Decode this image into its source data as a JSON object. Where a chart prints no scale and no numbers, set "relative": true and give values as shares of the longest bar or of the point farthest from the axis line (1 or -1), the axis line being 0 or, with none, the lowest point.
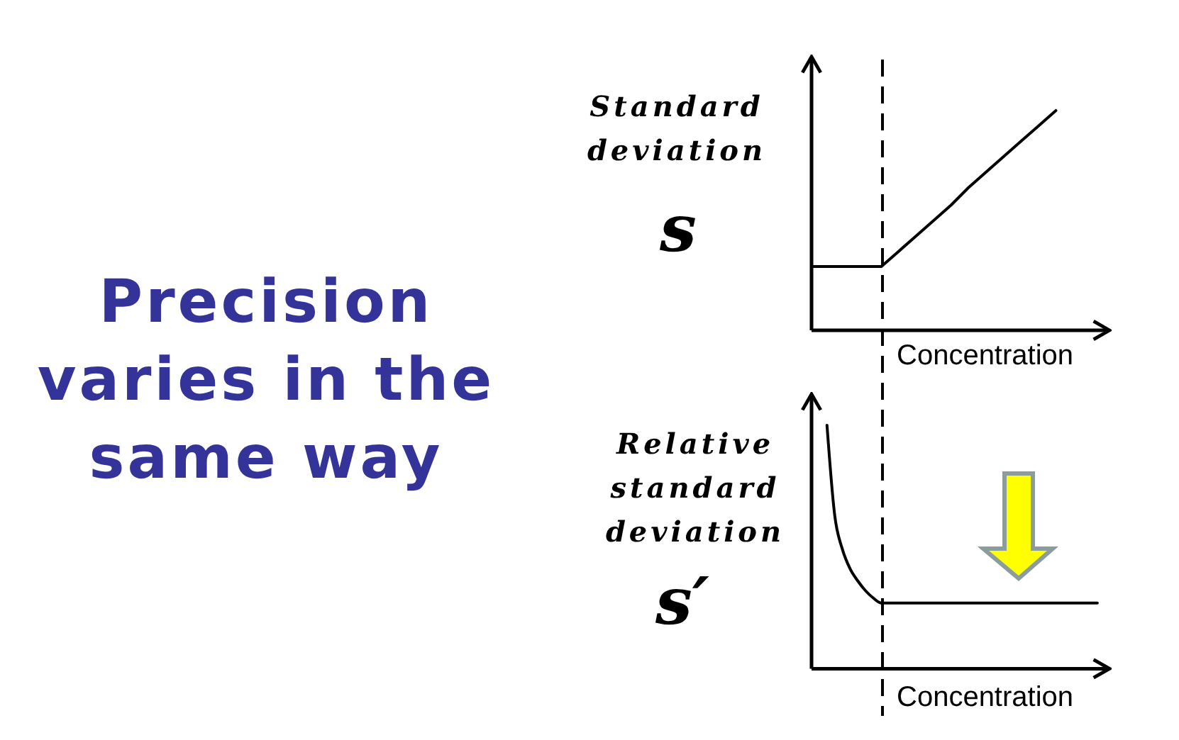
{
  "chart_data": [
    {
      "type": "other",
      "title": "Precision varies in the same way"
    },
    {
      "type": "line",
      "relative": true,
      "ylabel": "Standard deviation",
      "xlabel": "Concentration",
      "annotations": [
        "s"
      ],
      "line_style": "solid",
      "categories": [
        null,
        null,
        null,
        null,
        null,
        null,
        null,
        null,
        null,
        null,
        null,
        null,
        null,
        null,
        null,
        null,
        null
      ],
      "series": [
        {
          "color": "#000000",
          "values": [
            0.29,
            0.29,
            0.29,
            0.29,
            0.29,
            0.36,
            0.43,
            0.5,
            0.57,
            0.65,
            0.72,
            0.79,
            0.86,
            0.93,
            1,
            null,
            null
          ]
        }
      ]
    },
    {
      "type": "line",
      "relative": true,
      "ylabel": "Relative standard deviation",
      "xlabel": "Concentration",
      "annotations": [
        "s′"
      ],
      "line_style": "solid",
      "categories": [
        null,
        null,
        null,
        null,
        null,
        null,
        null,
        null,
        null,
        null,
        null,
        null,
        null,
        null,
        null,
        null,
        null,
        null,
        null,
        null,
        null,
        null,
        null,
        null,
        null,
        null,
        null,
        null,
        null,
        null,
        null,
        null,
        null,
        null,
        null,
        null,
        null,
        null
      ],
      "series": [
        {
          "color": "#000000",
          "values": [
            null,
            null,
            1,
            0.63,
            0.49,
            0.41,
            0.36,
            0.32,
            0.29,
            0.27,
            0.27,
            0.27,
            0.27,
            0.27,
            0.27,
            0.27,
            0.27,
            0.27,
            0.27,
            0.27,
            0.27,
            0.27,
            0.27,
            0.27,
            0.27,
            0.27,
            0.27,
            0.27,
            0.27,
            0.27,
            0.27,
            0.27,
            0.27,
            0.27,
            0.27,
            0.27,
            0.27,
            0.27
          ]
        }
      ]
    }
  ]
}
